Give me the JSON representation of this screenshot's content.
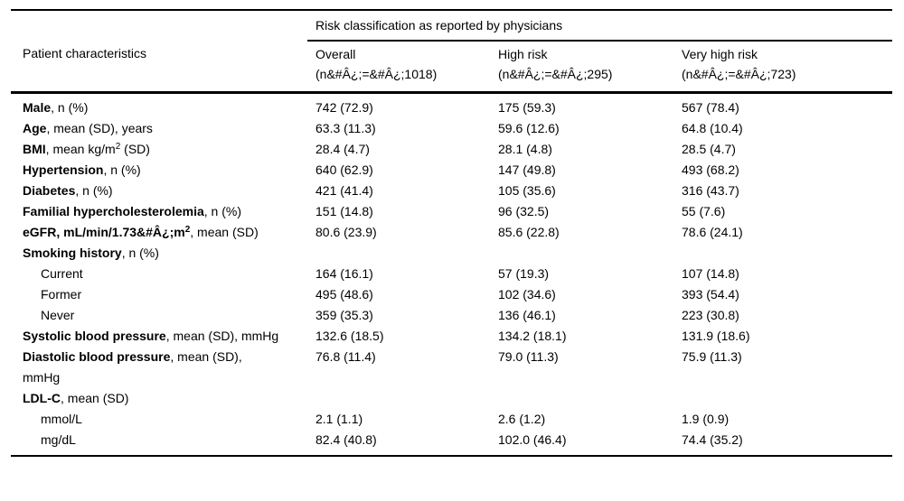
{
  "colors": {
    "text": "#000000",
    "background": "#ffffff",
    "rule": "#000000"
  },
  "table": {
    "spanner_heading": "Risk classification as reported by physicians",
    "row_header_label": "Patient characteristics",
    "columns": [
      {
        "title": "Overall",
        "n": "(n&#Â¿;=&#Â¿;1018)"
      },
      {
        "title": "High risk",
        "n": "(n&#Â¿;=&#Â¿;295)"
      },
      {
        "title": "Very high risk",
        "n": "(n&#Â¿;=&#Â¿;723)"
      }
    ],
    "rows": [
      {
        "indent": 0,
        "label": [
          {
            "t": "Male",
            "b": 1
          },
          {
            "t": ", n (%)"
          }
        ],
        "values": [
          "742 (72.9)",
          "175 (59.3)",
          "567 (78.4)"
        ]
      },
      {
        "indent": 0,
        "label": [
          {
            "t": "Age",
            "b": 1
          },
          {
            "t": ", mean (SD), years"
          }
        ],
        "values": [
          "63.3 (11.3)",
          "59.6 (12.6)",
          "64.8 (10.4)"
        ]
      },
      {
        "indent": 0,
        "label": [
          {
            "t": "BMI",
            "b": 1
          },
          {
            "t": ", mean kg/m"
          },
          {
            "t": "2",
            "sup": 1
          },
          {
            "t": " (SD)"
          }
        ],
        "values": [
          "28.4 (4.7)",
          "28.1 (4.8)",
          "28.5 (4.7)"
        ]
      },
      {
        "indent": 0,
        "label": [
          {
            "t": "Hypertension",
            "b": 1
          },
          {
            "t": ", n (%)"
          }
        ],
        "values": [
          "640 (62.9)",
          "147 (49.8)",
          "493 (68.2)"
        ]
      },
      {
        "indent": 0,
        "label": [
          {
            "t": "Diabetes",
            "b": 1
          },
          {
            "t": ", n (%)"
          }
        ],
        "values": [
          "421 (41.4)",
          "105 (35.6)",
          "316 (43.7)"
        ]
      },
      {
        "indent": 0,
        "label": [
          {
            "t": "Familial hypercholesterolemia",
            "b": 1
          },
          {
            "t": ", n (%)"
          }
        ],
        "values": [
          "151 (14.8)",
          "96 (32.5)",
          "55 (7.6)"
        ]
      },
      {
        "indent": 0,
        "label": [
          {
            "t": "eGFR, mL/min/1.73&#Â¿;m",
            "b": 1
          },
          {
            "t": "2",
            "b": 1,
            "sup": 1
          },
          {
            "t": ", mean (SD)"
          }
        ],
        "values": [
          "80.6 (23.9)",
          "85.6 (22.8)",
          "78.6 (24.1)"
        ]
      },
      {
        "indent": 0,
        "label": [
          {
            "t": "Smoking history",
            "b": 1
          },
          {
            "t": ", n (%)"
          }
        ],
        "values": [
          "",
          "",
          ""
        ]
      },
      {
        "indent": 1,
        "label": [
          {
            "t": "Current"
          }
        ],
        "values": [
          "164 (16.1)",
          "57 (19.3)",
          "107 (14.8)"
        ]
      },
      {
        "indent": 1,
        "label": [
          {
            "t": "Former"
          }
        ],
        "values": [
          "495 (48.6)",
          "102 (34.6)",
          "393 (54.4)"
        ]
      },
      {
        "indent": 1,
        "label": [
          {
            "t": "Never"
          }
        ],
        "values": [
          "359 (35.3)",
          "136 (46.1)",
          "223 (30.8)"
        ]
      },
      {
        "indent": 0,
        "label": [
          {
            "t": "Systolic blood pressure",
            "b": 1
          },
          {
            "t": ", mean (SD), mmHg"
          }
        ],
        "values": [
          "132.6 (18.5)",
          "134.2 (18.1)",
          "131.9 (18.6)"
        ]
      },
      {
        "indent": 0,
        "label": [
          {
            "t": "Diastolic blood pressure",
            "b": 1
          },
          {
            "t": ", mean (SD), mmHg"
          }
        ],
        "values": [
          "76.8 (11.4)",
          "79.0 (11.3)",
          "75.9 (11.3)"
        ]
      },
      {
        "indent": 0,
        "label": [
          {
            "t": "LDL-C",
            "b": 1
          },
          {
            "t": ", mean (SD)"
          }
        ],
        "values": [
          "",
          "",
          ""
        ]
      },
      {
        "indent": 1,
        "label": [
          {
            "t": "mmol/L"
          }
        ],
        "values": [
          "2.1 (1.1)",
          "2.6 (1.2)",
          "1.9 (0.9)"
        ]
      },
      {
        "indent": 1,
        "label": [
          {
            "t": "mg/dL"
          }
        ],
        "values": [
          "82.4 (40.8)",
          "102.0 (46.4)",
          "74.4 (35.2)"
        ]
      }
    ]
  }
}
